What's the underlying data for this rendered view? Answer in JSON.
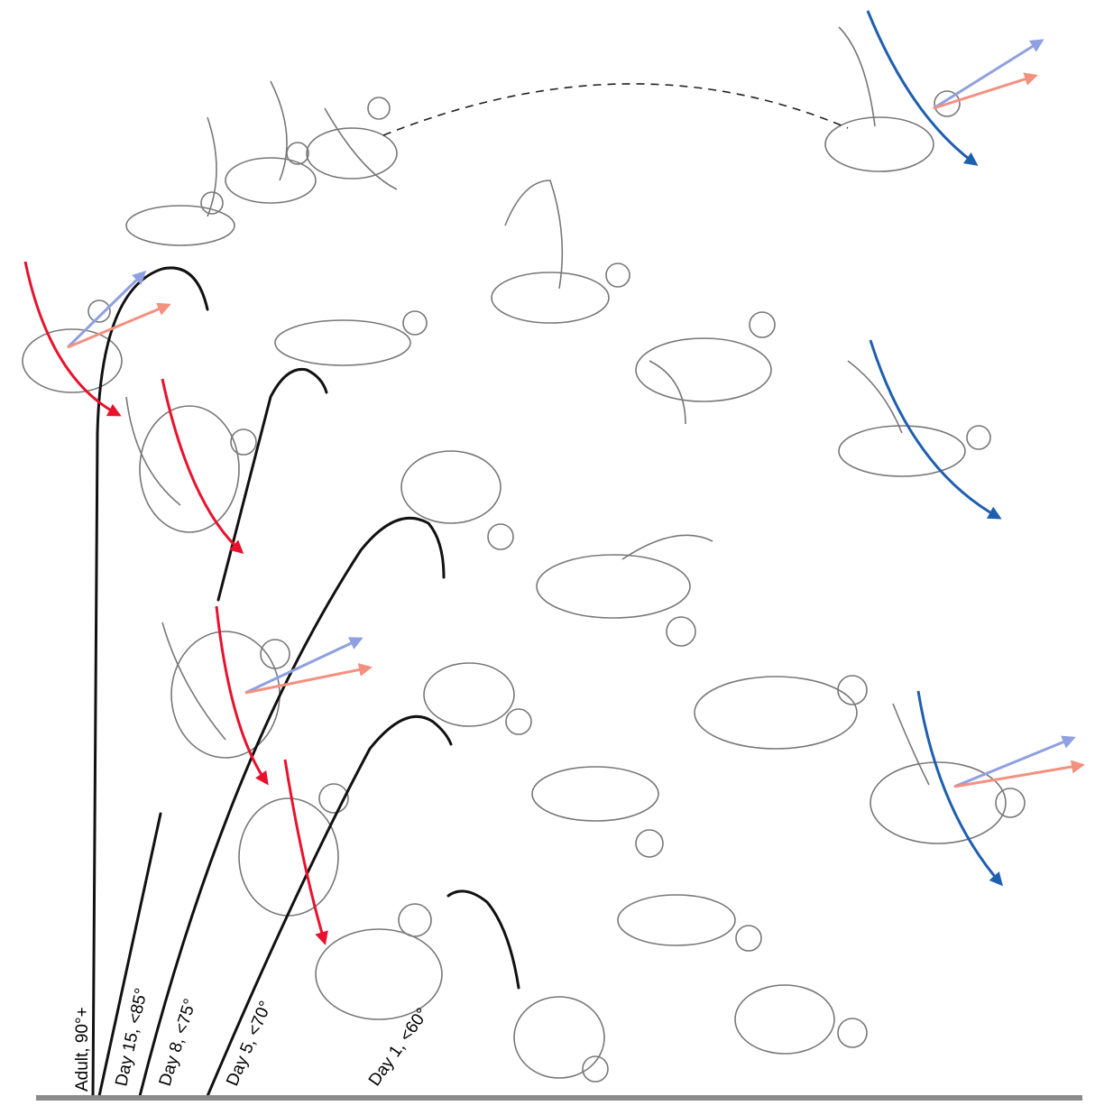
{
  "labels": [
    "Adult, 90°+",
    "Day 15, <85°",
    "Day 8, <75°",
    "Day 5, <70°",
    "Day 1, <60°"
  ]
}
